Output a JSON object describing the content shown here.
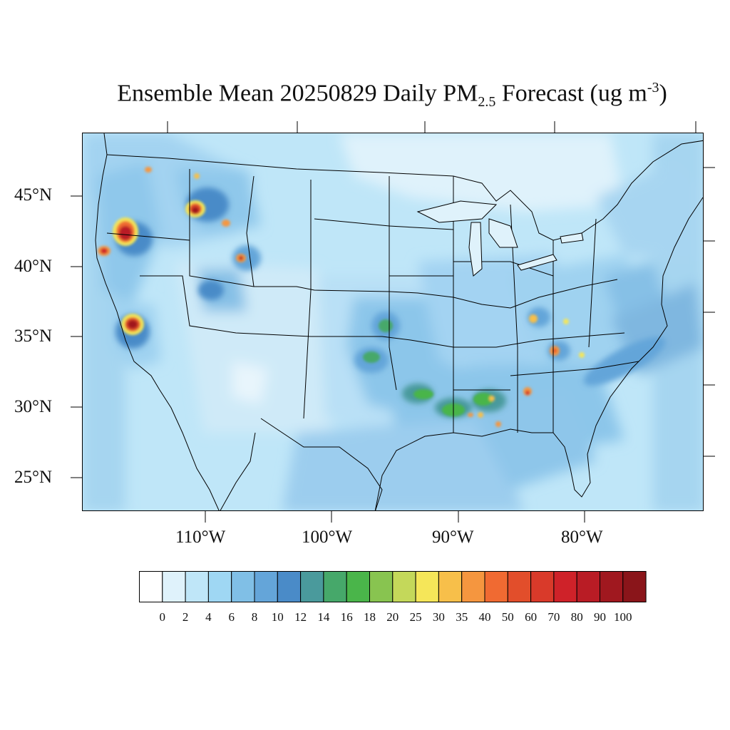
{
  "title": {
    "prefix": "Ensemble Mean 20250829 Daily PM",
    "subscript": "2.5",
    "middle": " Forecast (ug m",
    "superscript": "-3",
    "suffix": ")"
  },
  "map": {
    "lat_labels": [
      "45°N",
      "40°N",
      "35°N",
      "30°N",
      "25°N"
    ],
    "lon_labels": [
      "110°W",
      "100°W",
      "90°W",
      "80°W"
    ]
  },
  "colorbar": {
    "levels": [
      "0",
      "2",
      "4",
      "6",
      "8",
      "10",
      "12",
      "14",
      "16",
      "18",
      "20",
      "25",
      "30",
      "35",
      "40",
      "50",
      "60",
      "70",
      "80",
      "90",
      "100"
    ],
    "colors": [
      "#ffffff",
      "#dff2fb",
      "#bfe6f8",
      "#9fd7f3",
      "#80bfe6",
      "#64a5d9",
      "#4a8bc8",
      "#4a9a9c",
      "#46a86a",
      "#4ab54a",
      "#88c450",
      "#c4d85a",
      "#f5e659",
      "#f7bf4a",
      "#f5963f",
      "#f06a32",
      "#e24e2b",
      "#d93a2a",
      "#cf2229",
      "#b91c25",
      "#a0181f",
      "#8a151a"
    ],
    "map_colors": {
      "water": "#cfe9f8",
      "land_low": "#bfe6f8",
      "land_mid": "#9fd7f3",
      "land_high": "#80bfe6",
      "ocean_edge": "#a6d5f0"
    }
  }
}
